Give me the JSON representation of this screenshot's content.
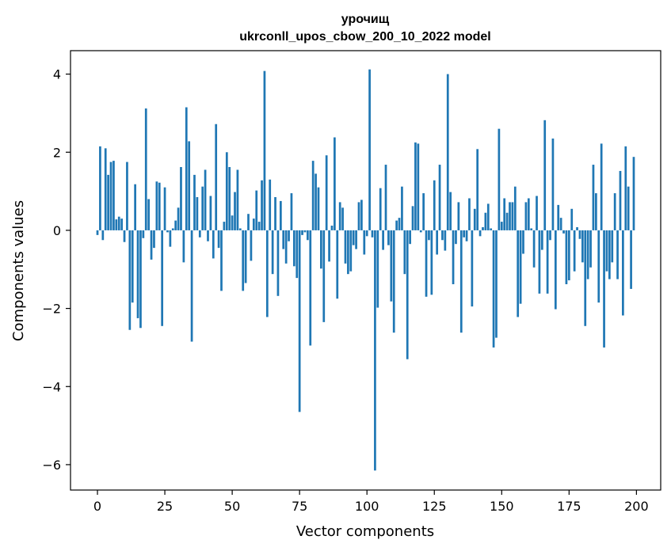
{
  "chart_data": {
    "type": "bar",
    "title_line1": "урочищ",
    "title_line2": "ukrconll_upos_cbow_200_10_2022 model",
    "xlabel": "Vector components",
    "ylabel": "Components values",
    "xlim": [
      -10,
      209
    ],
    "ylim": [
      -6.65,
      4.6
    ],
    "xticks": [
      0,
      25,
      50,
      75,
      100,
      125,
      150,
      175,
      200
    ],
    "yticks": [
      -6,
      -4,
      -2,
      0,
      2,
      4
    ],
    "ytick_labels": [
      "−6",
      "−4",
      "−2",
      "0",
      "2",
      "4"
    ],
    "grid": false,
    "bar_color": "#1f77b4",
    "x_start": 0,
    "values": [
      -0.12,
      2.15,
      -0.25,
      2.1,
      1.42,
      1.75,
      1.78,
      0.28,
      0.35,
      0.3,
      -0.3,
      1.75,
      -2.55,
      -1.85,
      1.18,
      -2.25,
      -2.5,
      -0.2,
      3.12,
      0.8,
      -0.75,
      -0.45,
      1.25,
      1.22,
      -2.45,
      1.1,
      -0.05,
      -0.42,
      0.05,
      0.25,
      0.58,
      1.62,
      -0.82,
      3.15,
      2.28,
      -2.85,
      1.42,
      0.85,
      -0.18,
      1.12,
      1.55,
      -0.28,
      0.88,
      -0.72,
      2.72,
      -0.45,
      -1.55,
      0.22,
      2.0,
      1.62,
      0.38,
      0.98,
      1.55,
      0.05,
      -1.55,
      -1.35,
      0.42,
      -0.78,
      0.3,
      1.02,
      0.22,
      1.28,
      4.08,
      -2.22,
      1.3,
      -1.12,
      0.85,
      -1.68,
      0.75,
      -0.48,
      -0.85,
      -0.28,
      0.95,
      -0.92,
      -1.22,
      -4.65,
      -0.12,
      -0.05,
      -0.25,
      -2.95,
      1.78,
      1.45,
      1.1,
      -0.98,
      -2.35,
      1.92,
      -0.8,
      0.12,
      2.38,
      -1.75,
      0.72,
      0.58,
      -0.85,
      -1.12,
      -1.05,
      -0.38,
      -0.48,
      0.72,
      0.78,
      -0.62,
      -0.15,
      4.12,
      -0.18,
      -6.15,
      -1.98,
      1.08,
      -0.5,
      1.68,
      -0.38,
      -1.82,
      -2.62,
      0.25,
      0.32,
      1.12,
      -1.12,
      -3.3,
      -0.35,
      0.62,
      2.25,
      2.22,
      -0.05,
      0.95,
      -1.7,
      -0.25,
      -1.65,
      1.28,
      -0.62,
      1.68,
      -0.25,
      -0.52,
      4.0,
      0.98,
      -1.38,
      -0.35,
      0.72,
      -2.62,
      -0.18,
      -0.28,
      0.82,
      -1.95,
      0.55,
      2.08,
      -0.15,
      0.08,
      0.45,
      0.68,
      0.05,
      -3.0,
      -2.75,
      2.6,
      0.22,
      0.82,
      0.45,
      0.72,
      0.72,
      1.12,
      -2.22,
      -1.88,
      -0.6,
      0.72,
      0.82,
      0.05,
      -0.95,
      0.88,
      -1.62,
      -0.5,
      2.82,
      -1.62,
      -0.25,
      2.35,
      -2.02,
      0.65,
      0.32,
      -0.08,
      -1.38,
      -1.28,
      0.55,
      -1.05,
      0.08,
      -0.22,
      -0.82,
      -2.45,
      -1.25,
      -0.95,
      1.68,
      0.95,
      -1.85,
      2.22,
      -3.0,
      -1.05,
      -1.25,
      -0.82,
      0.95,
      -1.25,
      1.52,
      -2.18,
      2.15,
      1.12,
      -1.5,
      1.88
    ]
  }
}
